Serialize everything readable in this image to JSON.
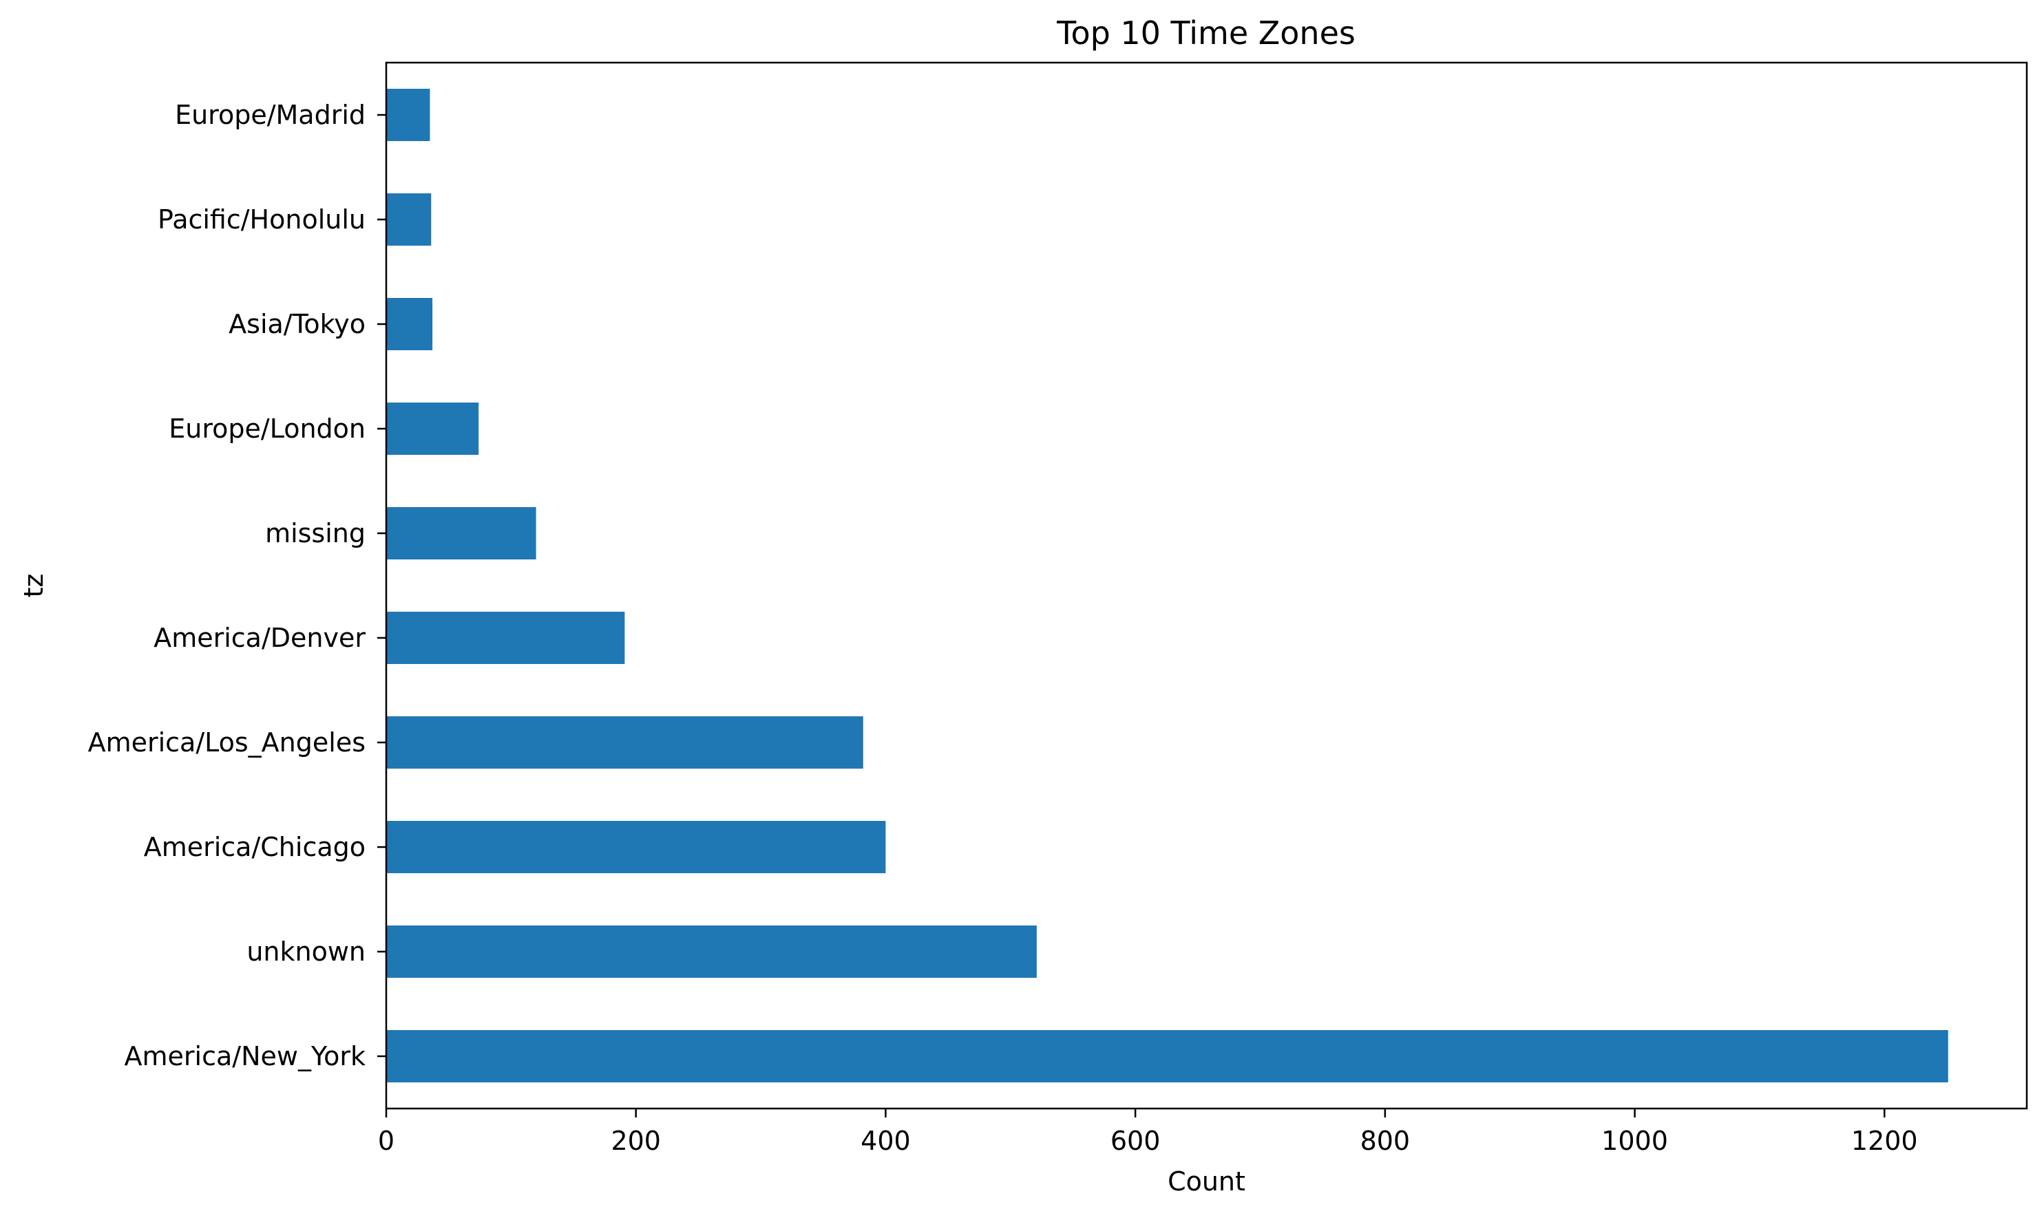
{
  "chart_data": {
    "type": "bar",
    "orientation": "horizontal",
    "title": "Top 10 Time Zones",
    "xlabel": "Count",
    "ylabel": "tz",
    "categories": [
      "America/New_York",
      "unknown",
      "America/Chicago",
      "America/Los_Angeles",
      "America/Denver",
      "missing",
      "Europe/London",
      "Asia/Tokyo",
      "Pacific/Honolulu",
      "Europe/Madrid"
    ],
    "values": [
      1251,
      521,
      400,
      382,
      191,
      120,
      74,
      37,
      36,
      35
    ],
    "xlim": [
      0,
      1314
    ],
    "xticks": [
      0,
      200,
      400,
      600,
      800,
      1000,
      1200
    ],
    "xtick_labels": [
      "0",
      "200",
      "400",
      "600",
      "800",
      "1000",
      "1200"
    ],
    "grid": false,
    "legend": false,
    "bar_color": "#1f77b4"
  }
}
